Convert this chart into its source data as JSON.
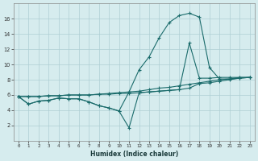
{
  "xlabel": "Humidex (Indice chaleur)",
  "bg_color": "#d6ecee",
  "grid_color": "#aecfd4",
  "line_color": "#1a6b6b",
  "xlim": [
    -0.5,
    23.5
  ],
  "ylim": [
    0,
    18
  ],
  "xticks": [
    0,
    1,
    2,
    3,
    4,
    5,
    6,
    7,
    8,
    9,
    10,
    11,
    12,
    13,
    14,
    15,
    16,
    17,
    18,
    19,
    20,
    21,
    22,
    23
  ],
  "yticks": [
    2,
    4,
    6,
    8,
    10,
    12,
    14,
    16
  ],
  "series1_x": [
    0,
    1,
    2,
    3,
    4,
    5,
    6,
    7,
    8,
    9,
    10,
    11,
    12,
    13,
    14,
    15,
    16,
    17,
    18,
    19,
    20,
    21,
    22,
    23
  ],
  "series1_y": [
    5.8,
    4.8,
    5.2,
    5.3,
    5.6,
    5.5,
    5.5,
    5.1,
    4.6,
    4.3,
    3.9,
    6.4,
    9.3,
    11.0,
    13.5,
    15.5,
    16.4,
    16.7,
    16.2,
    9.6,
    8.1,
    8.1,
    8.3,
    8.3
  ],
  "series2_x": [
    0,
    1,
    2,
    3,
    4,
    5,
    6,
    7,
    8,
    9,
    10,
    11,
    12,
    13,
    14,
    15,
    16,
    17,
    18,
    19,
    20,
    21,
    22,
    23
  ],
  "series2_y": [
    5.8,
    4.8,
    5.2,
    5.3,
    5.6,
    5.5,
    5.5,
    5.1,
    4.6,
    4.3,
    3.9,
    1.7,
    6.3,
    6.4,
    6.5,
    6.6,
    6.7,
    12.8,
    8.2,
    8.2,
    8.3,
    8.3,
    8.3,
    8.3
  ],
  "series3_x": [
    0,
    1,
    2,
    3,
    4,
    5,
    6,
    7,
    8,
    9,
    10,
    11,
    12,
    13,
    14,
    15,
    16,
    17,
    18,
    19,
    20,
    21,
    22,
    23
  ],
  "series3_y": [
    5.8,
    5.8,
    5.8,
    5.9,
    5.9,
    6.0,
    6.0,
    6.0,
    6.1,
    6.1,
    6.2,
    6.2,
    6.3,
    6.4,
    6.5,
    6.6,
    6.7,
    6.9,
    7.5,
    7.6,
    7.8,
    8.0,
    8.2,
    8.3
  ],
  "series4_x": [
    0,
    1,
    2,
    3,
    4,
    5,
    6,
    7,
    8,
    9,
    10,
    11,
    12,
    13,
    14,
    15,
    16,
    17,
    18,
    19,
    20,
    21,
    22,
    23
  ],
  "series4_y": [
    5.8,
    5.8,
    5.8,
    5.9,
    5.9,
    6.0,
    6.0,
    6.0,
    6.1,
    6.2,
    6.3,
    6.4,
    6.5,
    6.7,
    6.9,
    7.0,
    7.2,
    7.4,
    7.6,
    7.8,
    8.0,
    8.1,
    8.2,
    8.3
  ]
}
